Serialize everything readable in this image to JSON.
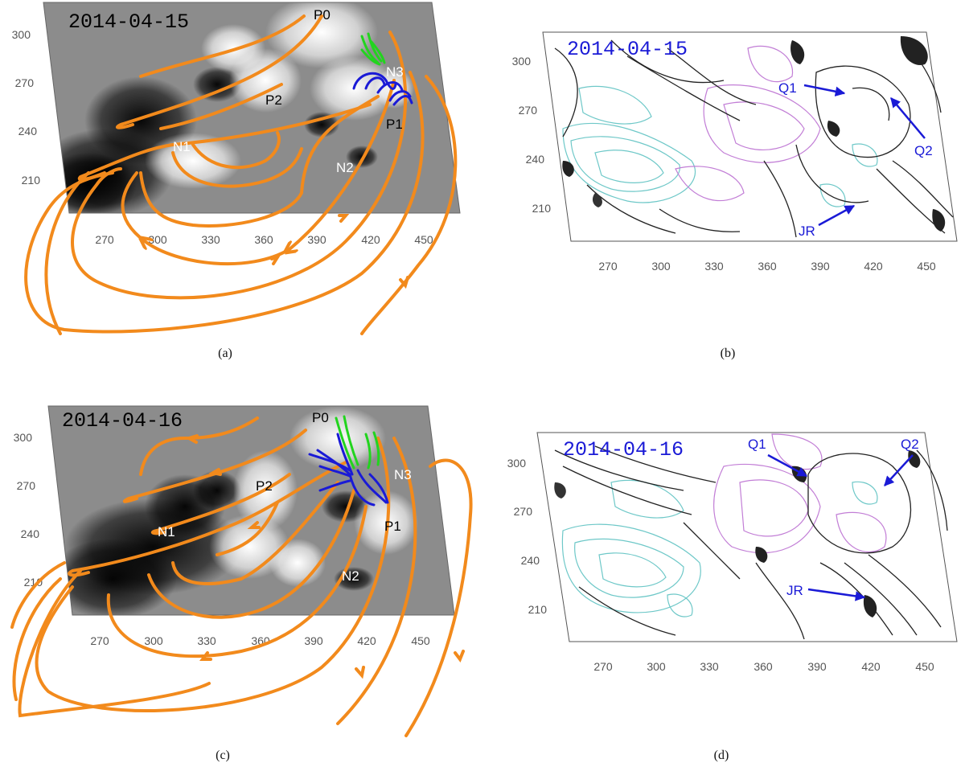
{
  "colors": {
    "field_lines": "#f28a1c",
    "blue_lines": "#1a1ad6",
    "green_lines": "#22d41e",
    "positive_contour": "#c27ed6",
    "negative_contour": "#6ec8c8",
    "annotation": "#1a1ad6"
  },
  "x_ticks": [
    "270",
    "300",
    "330",
    "360",
    "390",
    "420",
    "450"
  ],
  "panels": {
    "a": {
      "date": "2014-04-15",
      "caption": "(a)",
      "y_ticks": [
        "300",
        "270",
        "240",
        "210"
      ],
      "labels": {
        "P0": "P0",
        "P1": "P1",
        "P2": "P2",
        "N1": "N1",
        "N2": "N2",
        "N3": "N3"
      }
    },
    "b": {
      "date": "2014-04-15",
      "caption": "(b)",
      "y_ticks": [
        "300",
        "270",
        "240",
        "210"
      ],
      "labels": {
        "Q1": "Q1",
        "Q2": "Q2",
        "JR": "JR"
      }
    },
    "c": {
      "date": "2014-04-16",
      "caption": "(c)",
      "y_ticks": [
        "300",
        "270",
        "240",
        "210"
      ],
      "labels": {
        "P0": "P0",
        "P1": "P1",
        "P2": "P2",
        "N1": "N1",
        "N2": "N2",
        "N3": "N3"
      }
    },
    "d": {
      "date": "2014-04-16",
      "caption": "(d)",
      "y_ticks": [
        "300",
        "270",
        "240",
        "210"
      ],
      "labels": {
        "Q1": "Q1",
        "Q2": "Q2",
        "JR": "JR"
      }
    }
  }
}
